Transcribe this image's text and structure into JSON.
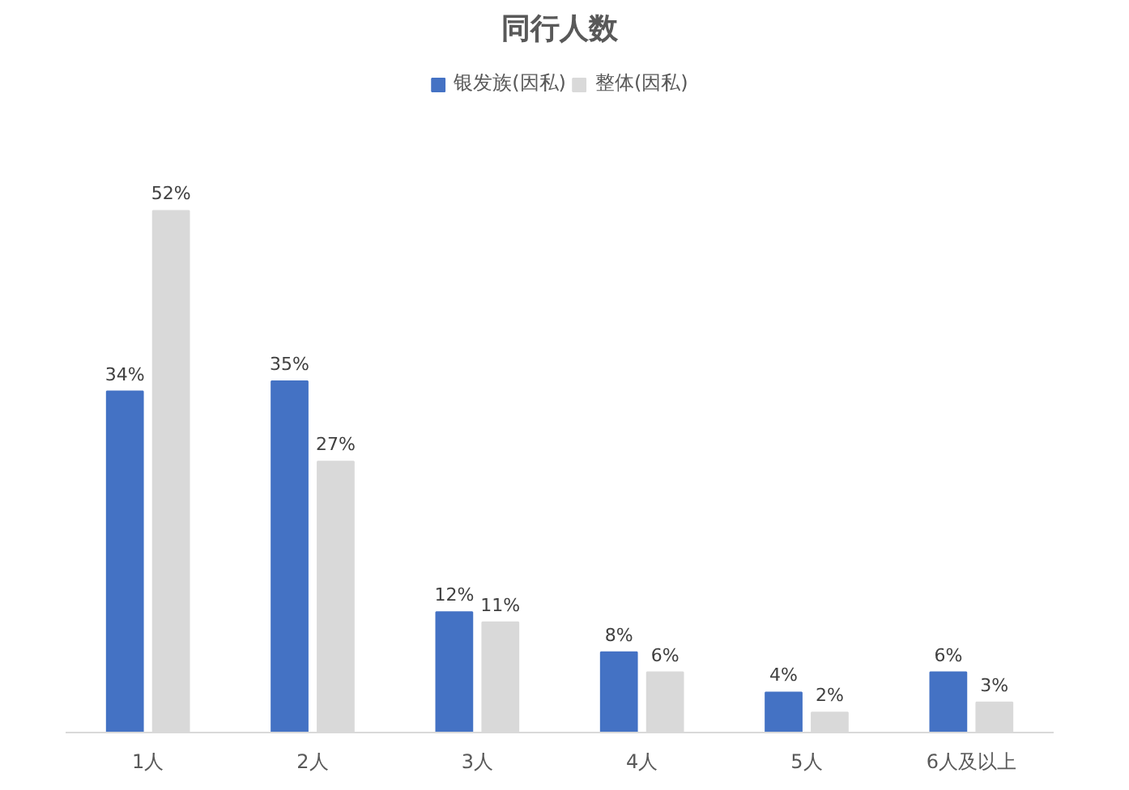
{
  "chart_data": {
    "type": "bar",
    "title": "同行人数",
    "categories": [
      "1人",
      "2人",
      "3人",
      "4人",
      "5人",
      "6人及以上"
    ],
    "series": [
      {
        "name": "银发族(因私)",
        "color": "#4472c4",
        "values": [
          34,
          35,
          12,
          8,
          4,
          6
        ],
        "value_labels": [
          "34%",
          "35%",
          "12%",
          "8%",
          "4%",
          "6%"
        ]
      },
      {
        "name": "整体(因私)",
        "color": "#d9d9d9",
        "values": [
          52,
          27,
          11,
          6,
          2,
          3
        ],
        "value_labels": [
          "52%",
          "27%",
          "11%",
          "6%",
          "2%",
          "3%"
        ]
      }
    ],
    "legend": "top",
    "grid": false
  }
}
